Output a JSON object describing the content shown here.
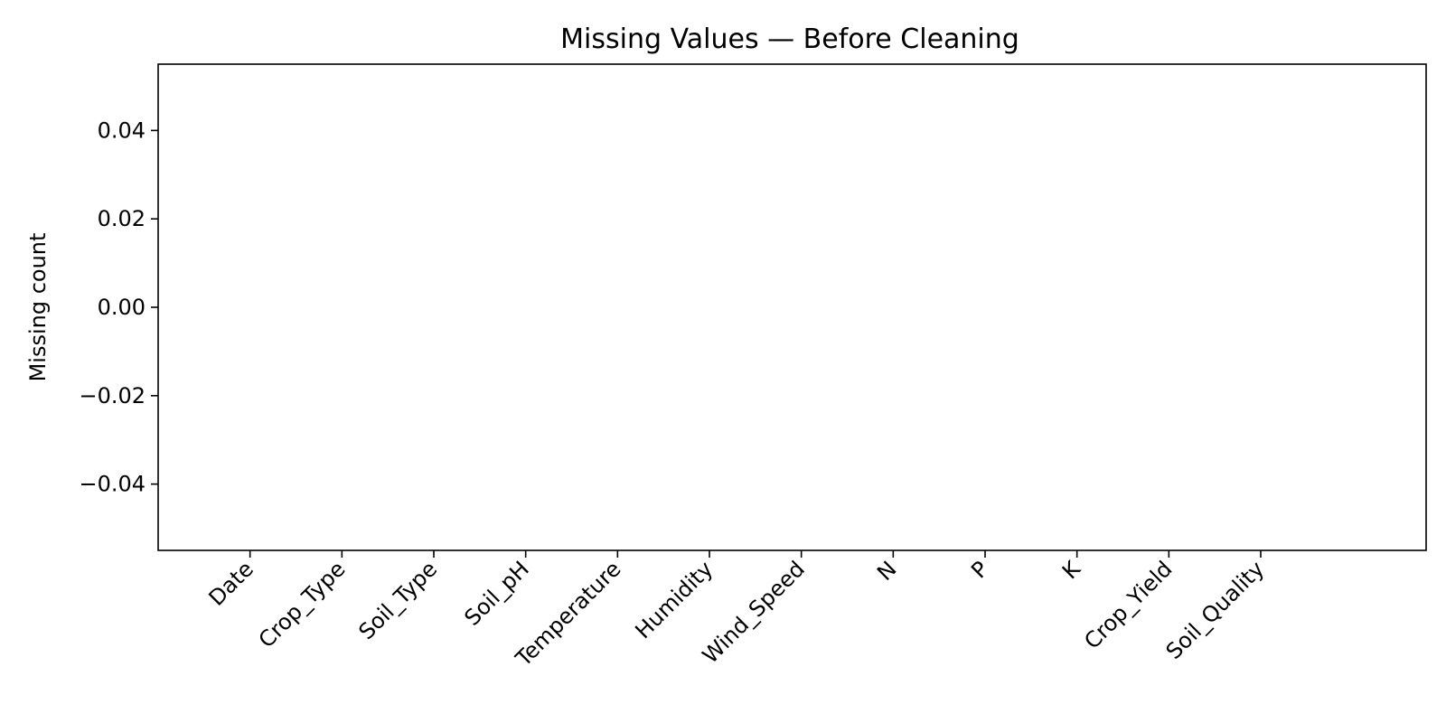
{
  "chart_data": {
    "type": "bar",
    "title": "Missing Values — Before Cleaning",
    "xlabel": "",
    "ylabel": "Missing count",
    "categories": [
      "Date",
      "Crop_Type",
      "Soil_Type",
      "Soil_pH",
      "Temperature",
      "Humidity",
      "Wind_Speed",
      "N",
      "P",
      "K",
      "Crop_Yield",
      "Soil_Quality"
    ],
    "values": [
      0,
      0,
      0,
      0,
      0,
      0,
      0,
      0,
      0,
      0,
      0,
      0
    ],
    "ylim": [
      -0.055,
      0.055
    ],
    "yticks": [
      0.04,
      0.02,
      0.0,
      -0.02,
      -0.04
    ],
    "ytick_labels": [
      "0.04",
      "0.02",
      "0.00",
      "−0.02",
      "−0.04"
    ],
    "grid": false,
    "legend": "none",
    "bar_color": "#1f77b4"
  }
}
